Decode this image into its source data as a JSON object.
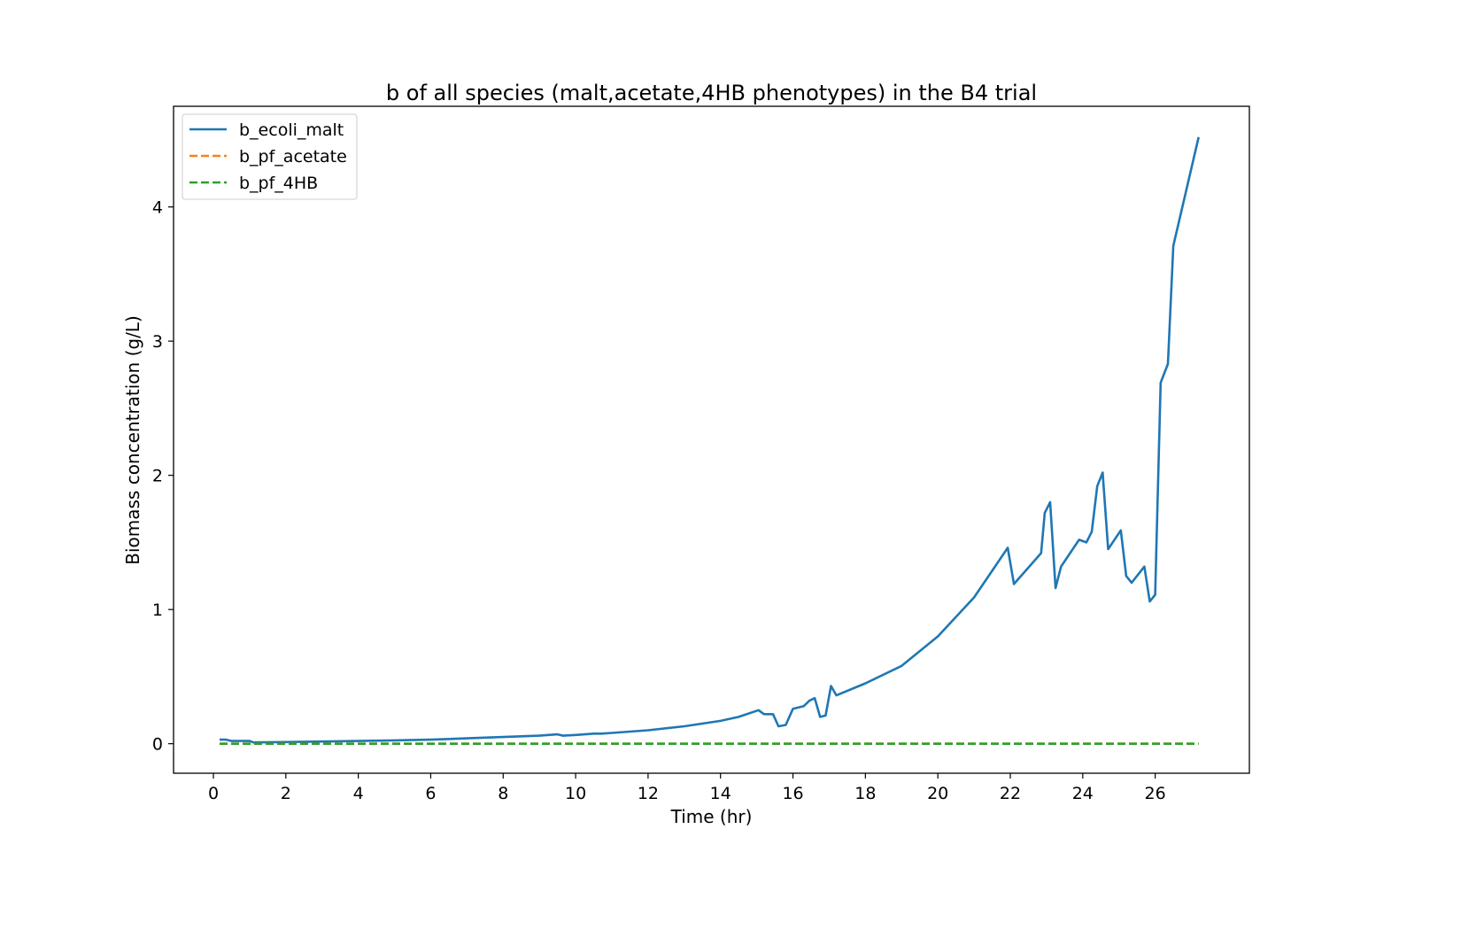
{
  "chart_data": {
    "type": "line",
    "title": "b of all species (malt,acetate,4HB phenotypes) in the B4 trial",
    "xlabel": "Time (hr)",
    "ylabel": "Biomass concentration (g/L)",
    "xlim": [
      -1.1,
      28.6
    ],
    "ylim": [
      -0.22,
      4.75
    ],
    "xticks": [
      0,
      2,
      4,
      6,
      8,
      10,
      12,
      14,
      16,
      18,
      20,
      22,
      24,
      26
    ],
    "xtick_labels": [
      "0",
      "2",
      "4",
      "6",
      "8",
      "10",
      "12",
      "14",
      "16",
      "18",
      "20",
      "22",
      "24",
      "26"
    ],
    "yticks": [
      0,
      1,
      2,
      3,
      4
    ],
    "ytick_labels": [
      "0",
      "1",
      "2",
      "3",
      "4"
    ],
    "grid": false,
    "legend_position": "top-left",
    "series": [
      {
        "name": "b_ecoli_malt",
        "color": "#1f77b4",
        "style": "solid",
        "x": [
          0.17,
          0.35,
          0.5,
          1.0,
          1.1,
          2,
          3,
          4,
          5,
          6,
          7,
          8,
          9,
          9.5,
          9.65,
          10,
          10.5,
          10.7,
          11,
          12,
          13,
          14,
          14.5,
          15.05,
          15.2,
          15.45,
          15.6,
          15.8,
          16.0,
          16.3,
          16.45,
          16.6,
          16.75,
          16.9,
          17.05,
          17.2,
          18,
          19,
          20,
          21,
          21.93,
          22.1,
          22.85,
          22.95,
          23.1,
          23.25,
          23.4,
          23.9,
          24.1,
          24.25,
          24.4,
          24.55,
          24.7,
          25.05,
          25.2,
          25.35,
          25.7,
          25.85,
          26.0,
          26.15,
          26.35,
          26.5,
          27.2
        ],
        "y": [
          0.03,
          0.03,
          0.02,
          0.02,
          0.01,
          0.012,
          0.016,
          0.02,
          0.025,
          0.03,
          0.04,
          0.05,
          0.06,
          0.07,
          0.06,
          0.065,
          0.075,
          0.075,
          0.08,
          0.1,
          0.13,
          0.17,
          0.2,
          0.25,
          0.22,
          0.22,
          0.13,
          0.14,
          0.26,
          0.28,
          0.32,
          0.34,
          0.2,
          0.21,
          0.43,
          0.36,
          0.45,
          0.58,
          0.8,
          1.09,
          1.46,
          1.19,
          1.42,
          1.72,
          1.8,
          1.16,
          1.32,
          1.52,
          1.5,
          1.58,
          1.92,
          2.02,
          1.45,
          1.59,
          1.25,
          1.2,
          1.32,
          1.06,
          1.11,
          2.69,
          2.83,
          3.71,
          4.52
        ]
      },
      {
        "name": "b_pf_acetate",
        "color": "#ff7f0e",
        "style": "dashed",
        "x": [
          0.17,
          27.2
        ],
        "y": [
          0,
          0
        ]
      },
      {
        "name": "b_pf_4HB",
        "color": "#2ca02c",
        "style": "dashed",
        "x": [
          0.17,
          27.2
        ],
        "y": [
          0,
          0
        ]
      }
    ]
  }
}
